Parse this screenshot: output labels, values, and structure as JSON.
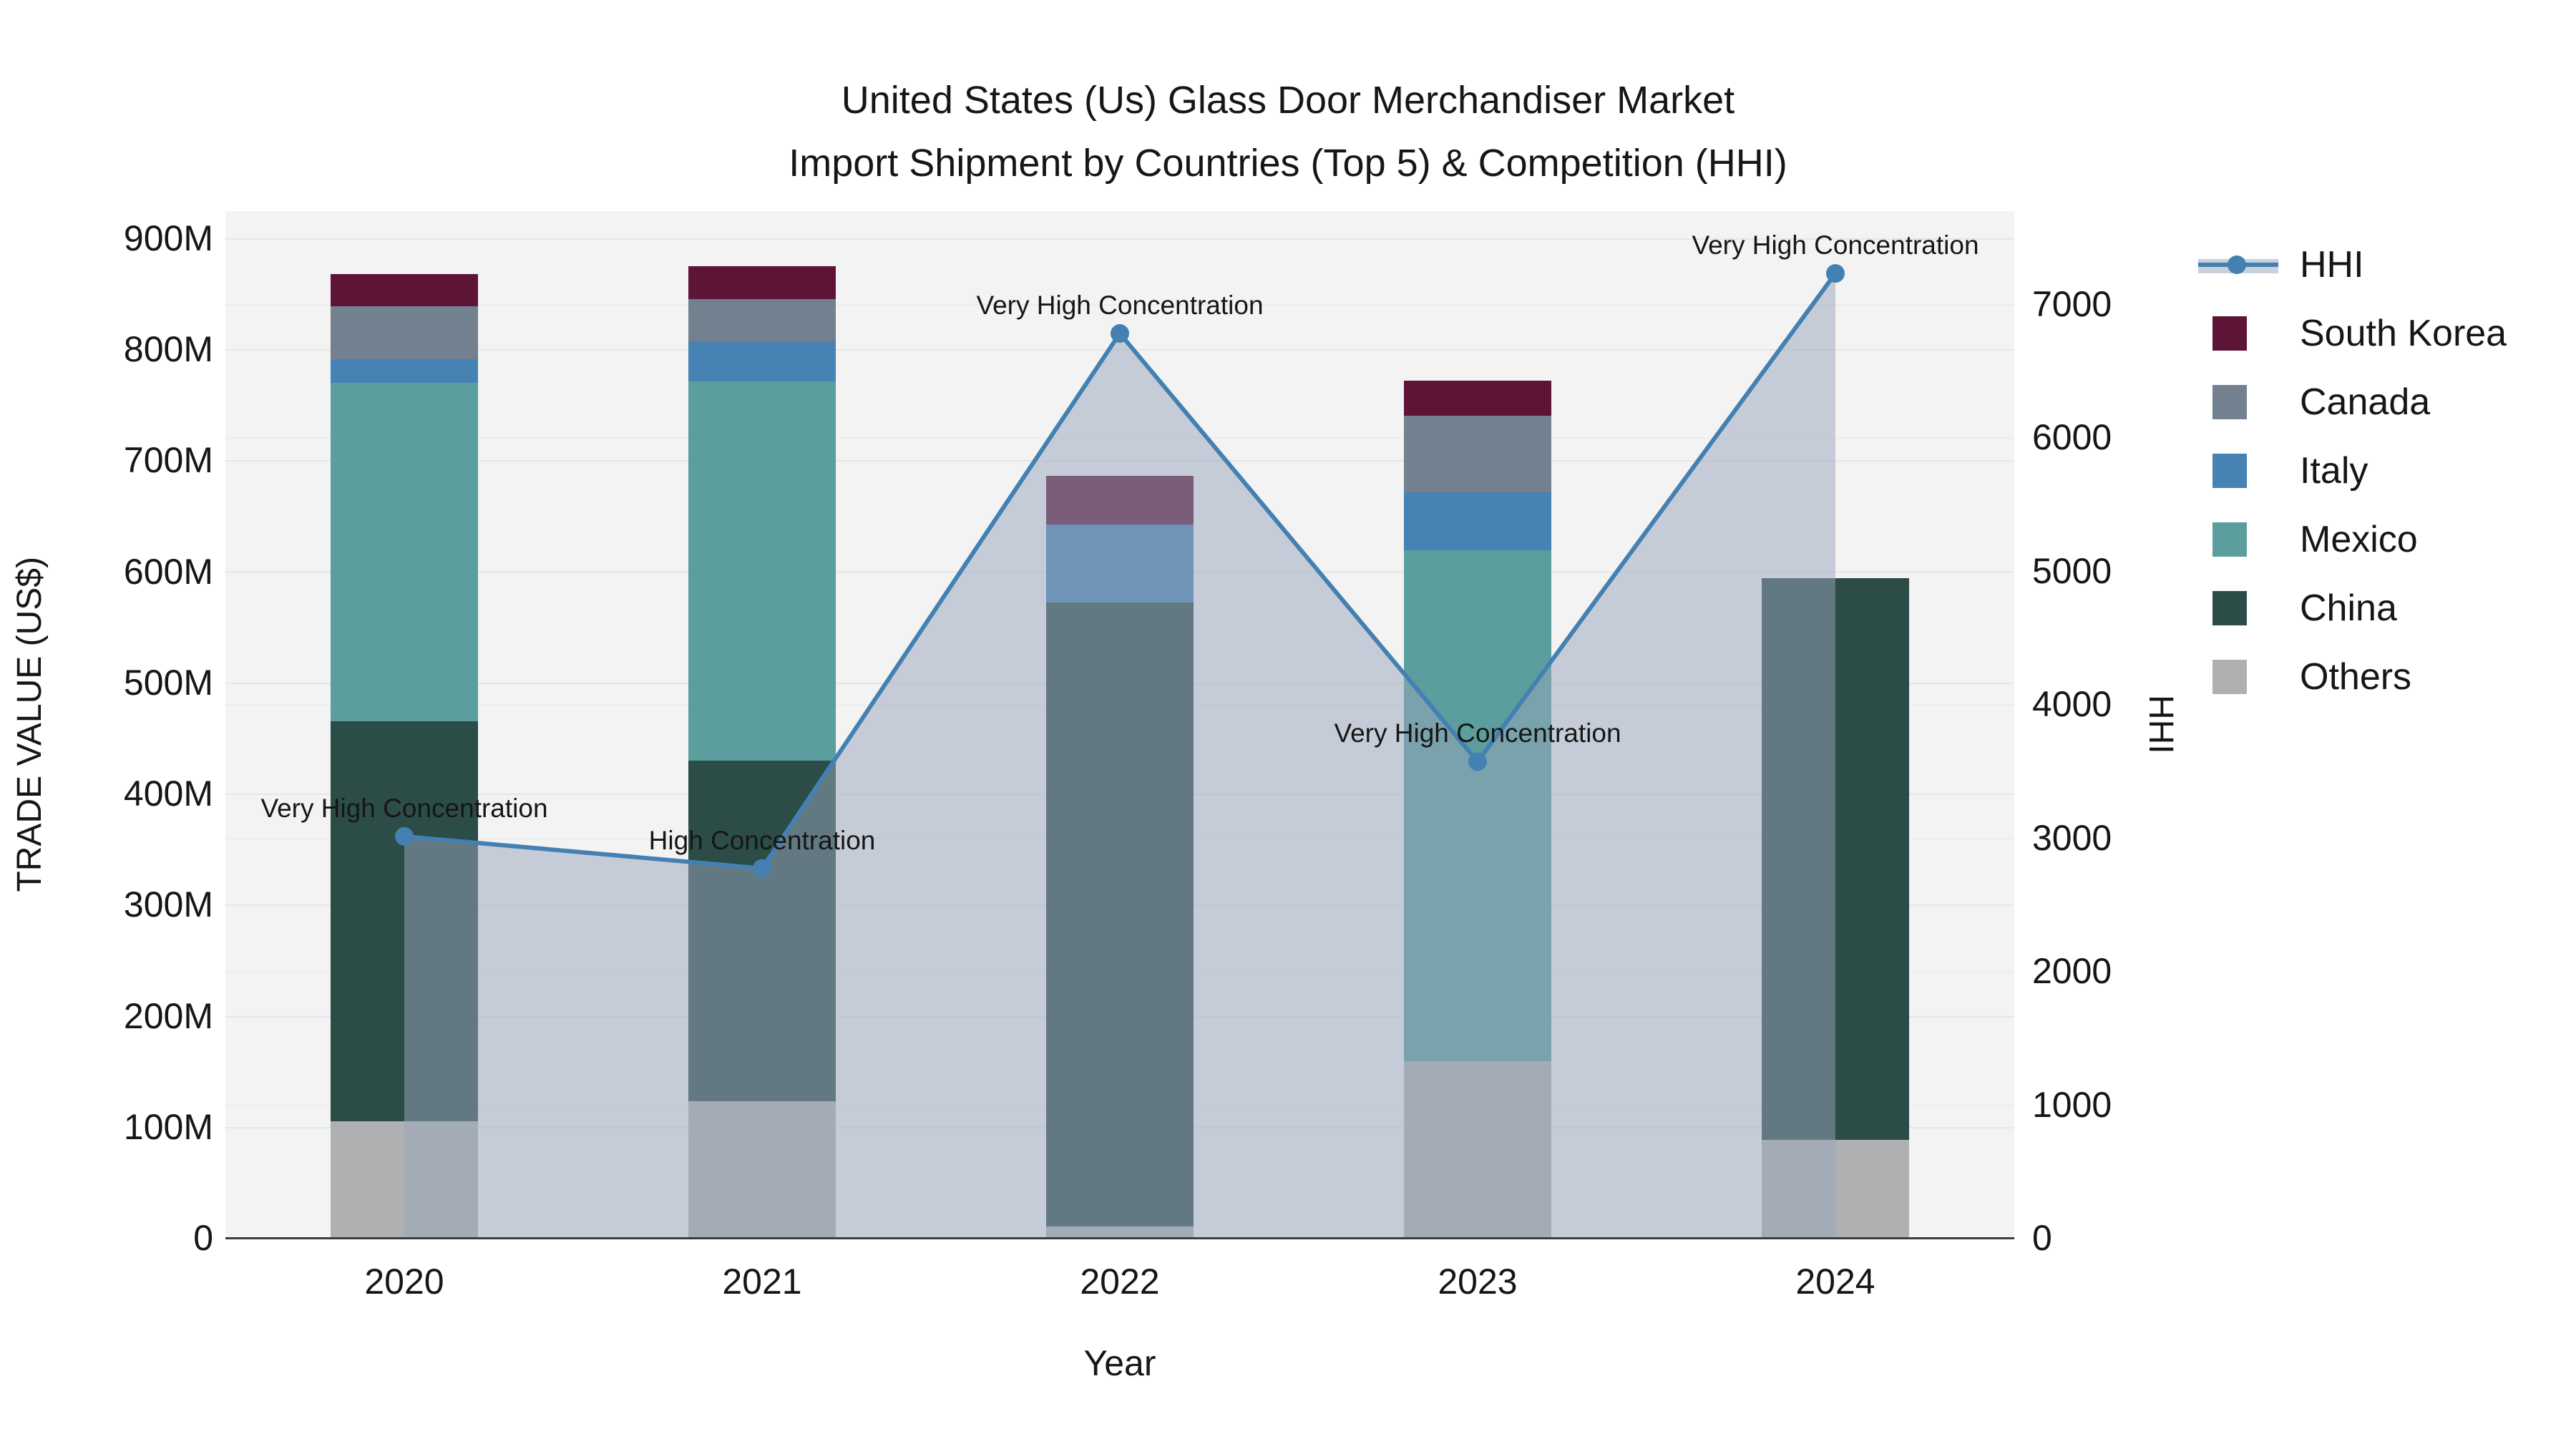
{
  "title": {
    "line1": "United States (Us) Glass Door Merchandiser Market",
    "line2": "Import Shipment by Countries (Top 5) & Competition (HHI)"
  },
  "axes": {
    "x": {
      "title": "Year"
    },
    "y_left": {
      "title": "TRADE VALUE (US$)",
      "tick_values": [
        0,
        100,
        200,
        300,
        400,
        500,
        600,
        700,
        800,
        900
      ],
      "tick_labels": [
        "0",
        "100M",
        "200M",
        "300M",
        "400M",
        "500M",
        "600M",
        "700M",
        "800M",
        "900M"
      ]
    },
    "y_right": {
      "title": "HHI",
      "tick_values": [
        0,
        1000,
        2000,
        3000,
        4000,
        5000,
        6000,
        7000
      ],
      "tick_labels": [
        "0",
        "1000",
        "2000",
        "3000",
        "4000",
        "5000",
        "6000",
        "7000"
      ]
    }
  },
  "legend": [
    {
      "label": "HHI",
      "type": "line",
      "color": "#4480b2"
    },
    {
      "label": "South Korea",
      "type": "swatch",
      "color": "#5e1437"
    },
    {
      "label": "Canada",
      "type": "swatch",
      "color": "#72808f"
    },
    {
      "label": "Italy",
      "type": "swatch",
      "color": "#4682b4"
    },
    {
      "label": "Mexico",
      "type": "swatch",
      "color": "#5c9e9e"
    },
    {
      "label": "China",
      "type": "swatch",
      "color": "#2c4c48"
    },
    {
      "label": "Others",
      "type": "swatch",
      "color": "#aeb0b2"
    }
  ],
  "chart_data": {
    "type": "combo-stacked-bar-line",
    "categories": [
      "2020",
      "2021",
      "2022",
      "2023",
      "2024"
    ],
    "bar_value_unit": "US$ millions",
    "stack_order_bottom_to_top": [
      "Others",
      "China",
      "Mexico",
      "Italy",
      "Canada",
      "South Korea"
    ],
    "series": [
      {
        "name": "Others",
        "color": "#aeb0b2",
        "values": [
          105,
          123,
          10,
          159,
          88
        ]
      },
      {
        "name": "China",
        "color": "#2c4c48",
        "values": [
          360,
          307,
          562,
          0,
          506
        ]
      },
      {
        "name": "Mexico",
        "color": "#5c9e9e",
        "values": [
          305,
          341,
          0,
          460,
          0
        ]
      },
      {
        "name": "Italy",
        "color": "#4682b4",
        "values": [
          21,
          36,
          70,
          52,
          0
        ]
      },
      {
        "name": "Canada",
        "color": "#72808f",
        "values": [
          48,
          38,
          0,
          69,
          0
        ]
      },
      {
        "name": "South Korea",
        "color": "#5e1437",
        "values": [
          29,
          30,
          44,
          32,
          0
        ]
      }
    ],
    "line_series": {
      "name": "HHI",
      "color": "#4480b2",
      "area_fill": "rgba(151,165,187,0.5)",
      "values": [
        3010,
        2770,
        6780,
        3570,
        7230
      ],
      "annotations": [
        "Very High Concentration",
        "High Concentration",
        "Very High Concentration",
        "Very High Concentration",
        "Very High Concentration"
      ]
    },
    "ylim_left": [
      0,
      900
    ],
    "ylim_right": [
      0,
      7000
    ],
    "grid": true,
    "legend_position": "right"
  }
}
